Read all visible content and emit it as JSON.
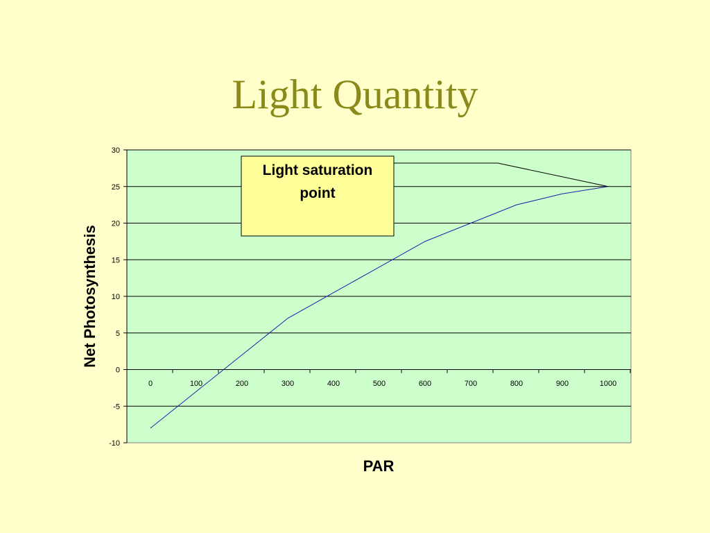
{
  "slide": {
    "title": "Light Quantity"
  },
  "colors": {
    "background": "#ffffcc",
    "title": "#8a8a1a",
    "plot_area": "#ccffcc",
    "series_line": "#1f1fa8",
    "callout_fill": "#ffff99"
  },
  "chart_data": {
    "type": "line",
    "xlabel": "PAR",
    "ylabel": "Net Photosynthesis",
    "x_categories": [
      "0",
      "100",
      "200",
      "300",
      "400",
      "500",
      "600",
      "700",
      "800",
      "900",
      "1000"
    ],
    "ylim": [
      -10,
      30
    ],
    "y_ticks": [
      -10,
      -5,
      0,
      5,
      10,
      15,
      20,
      25,
      30
    ],
    "grid": true,
    "legend": "none",
    "series": [
      {
        "x": [
          0,
          100,
          200,
          300,
          400,
          500,
          600,
          700,
          800,
          900,
          1000
        ],
        "values": [
          -8,
          -3,
          2,
          7,
          10.5,
          14,
          17.5,
          20,
          22.5,
          24,
          25
        ]
      }
    ],
    "annotation": {
      "text_lines": [
        "Light saturation",
        "point"
      ],
      "points_to": {
        "x": 1000,
        "y": 25
      }
    }
  }
}
